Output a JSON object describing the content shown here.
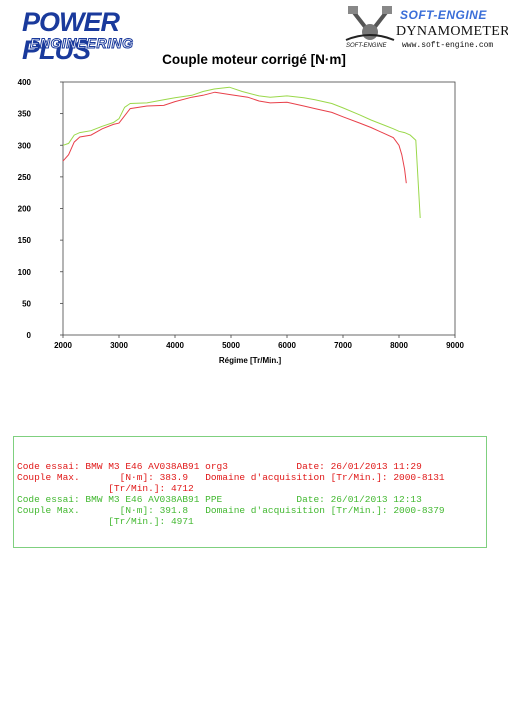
{
  "header": {
    "logo_left_line1": "POWER PLUS",
    "logo_left_line2": "ENGINEERING",
    "logo_right_brand": "SOFT-ENGINE",
    "logo_right_mark_text": "SOFT-ENGINE",
    "logo_right_dyn": "DYNAMOMETERS",
    "logo_right_url": "www.soft-engine.com"
  },
  "colors": {
    "run1": "#e8404a",
    "run2": "#9ad84a",
    "brand_blue": "#1a3a9c"
  },
  "chart_data": {
    "type": "line",
    "title": "Couple moteur corrigé [N·m]",
    "xlabel": "Régime [Tr/Min.]",
    "ylabel": "",
    "xlim": [
      2000,
      9000
    ],
    "ylim": [
      0,
      400
    ],
    "xticks": [
      2000,
      3000,
      4000,
      5000,
      6000,
      7000,
      8000,
      9000
    ],
    "yticks": [
      0,
      50,
      100,
      150,
      200,
      250,
      300,
      350,
      400
    ],
    "grid": false,
    "series": [
      {
        "name": "BMW M3 E46 AV038AB91 org3",
        "color": "#e8404a",
        "x": [
          2000,
          2100,
          2200,
          2300,
          2500,
          2700,
          2900,
          3000,
          3200,
          3500,
          3800,
          4000,
          4300,
          4500,
          4712,
          5000,
          5300,
          5500,
          5700,
          6000,
          6300,
          6500,
          6800,
          7000,
          7300,
          7500,
          7700,
          7900,
          8000,
          8050,
          8100,
          8131
        ],
        "y": [
          275,
          285,
          305,
          313,
          316,
          326,
          333,
          335,
          358,
          362,
          363,
          369,
          376,
          379,
          383.9,
          380,
          376,
          370,
          367,
          368,
          362,
          358,
          352,
          345,
          335,
          328,
          320,
          312,
          300,
          285,
          262,
          240
        ]
      },
      {
        "name": "BMW M3 E46 AV038AB91 PPE",
        "color": "#9ad84a",
        "x": [
          2000,
          2100,
          2200,
          2300,
          2500,
          2700,
          2900,
          3000,
          3100,
          3200,
          3500,
          3800,
          4000,
          4300,
          4500,
          4700,
          4971,
          5200,
          5500,
          5700,
          6000,
          6300,
          6500,
          6800,
          7000,
          7300,
          7500,
          7700,
          7900,
          8000,
          8100,
          8200,
          8300,
          8350,
          8379
        ],
        "y": [
          300,
          303,
          316,
          320,
          323,
          330,
          336,
          342,
          360,
          366,
          367,
          372,
          375,
          379,
          385,
          389,
          391.8,
          385,
          378,
          376,
          378,
          375,
          372,
          366,
          359,
          348,
          340,
          333,
          326,
          322,
          320,
          316,
          308,
          230,
          185
        ]
      }
    ]
  },
  "info": {
    "run1": {
      "code_label": "Code essai:",
      "code_value": "BMW M3 E46 AV038AB91 org3",
      "date_label": "Date:",
      "date_value": "26/01/2013 11:29",
      "max_label": "Couple Max.",
      "max_unit": "[N·m]:",
      "max_value": "383.9",
      "domain_label": "Domaine d'acquisition [Tr/Min.]:",
      "domain_value": "2000-8131",
      "rpm_label": "[Tr/Min.]:",
      "rpm_value": "4712"
    },
    "run2": {
      "code_label": "Code essai:",
      "code_value": "BMW M3 E46 AV038AB91 PPE",
      "date_label": "Date:",
      "date_value": "26/01/2013 12:13",
      "max_label": "Couple Max.",
      "max_unit": "[N·m]:",
      "max_value": "391.8",
      "domain_label": "Domaine d'acquisition [Tr/Min.]:",
      "domain_value": "2000-8379",
      "rpm_label": "[Tr/Min.]:",
      "rpm_value": "4971"
    }
  }
}
